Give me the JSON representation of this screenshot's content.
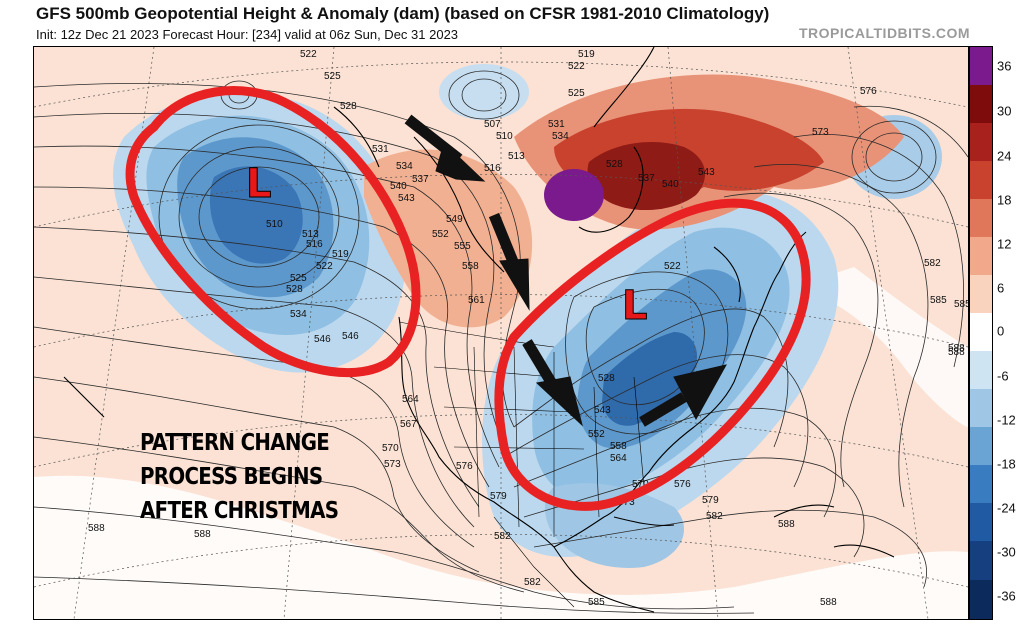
{
  "header": {
    "title": "GFS 500mb Geopotential Height & Anomaly (dam) (based on CFSR 1981-2010 Climatology)",
    "init_line": "Init: 12z Dec 21 2023   Forecast Hour: [234]   valid at 06z Sun, Dec 31 2023",
    "brand": "TROPICALTIDBITS.COM"
  },
  "annotation": {
    "lines": [
      "PATTERN CHANGE",
      "PROCESS BEGINS",
      "AFTER CHRISTMAS"
    ]
  },
  "low_markers": {
    "west": "L",
    "east": "L"
  },
  "contour_labels": {
    "c1": "522",
    "c2": "525",
    "c3": "528",
    "c4": "531",
    "c5": "534",
    "c6": "537",
    "c7": "540",
    "c8": "543",
    "c9": "546",
    "c10": "549",
    "c11": "552",
    "c12": "555",
    "c13": "558",
    "c14": "561",
    "c15": "510",
    "c16": "513",
    "c17": "516",
    "c18": "519",
    "c19": "522",
    "c20": "525",
    "c21": "528",
    "c22": "534",
    "c23": "546",
    "c24": "564",
    "c25": "567",
    "c26": "570",
    "c27": "573",
    "c28": "576",
    "c29": "579",
    "c30": "582",
    "c31": "585",
    "c32": "588",
    "c33": "588",
    "c34": "588",
    "c35": "588",
    "c36": "576",
    "c37": "573",
    "c38": "582",
    "c39": "585",
    "c40": "588",
    "c41": "519",
    "c42": "522",
    "c43": "525",
    "c44": "507",
    "c45": "510",
    "c46": "513",
    "c47": "516",
    "c48": "531",
    "c49": "534",
    "c50": "528",
    "c51": "537",
    "c52": "540",
    "c53": "543",
    "c54": "528",
    "c55": "543",
    "c56": "552",
    "c57": "558",
    "c58": "564",
    "c59": "570",
    "c60": "573",
    "c61": "576",
    "c62": "579",
    "c63": "582",
    "c64": "585",
    "c65": "588",
    "c66": "582",
    "c67": "522",
    "c68": "546"
  },
  "colorbar": {
    "ticks": [
      "36",
      "30",
      "24",
      "18",
      "12",
      "6",
      "0",
      "-6",
      "-12",
      "-18",
      "-24",
      "-30",
      "-36"
    ],
    "colors": [
      "#7a1a8c",
      "#7e0c0c",
      "#a8211c",
      "#c8422e",
      "#e0765a",
      "#f2a88a",
      "#fad3bf",
      "#ffffff",
      "#cfe4f2",
      "#9fc6e4",
      "#6aa4d4",
      "#3a7cc0",
      "#1f5aa3",
      "#153f7e",
      "#0c2a5c"
    ]
  },
  "map_colors": {
    "positive_anomaly": "#fad3bf",
    "strong_positive": "#c8422e",
    "negative_anomaly": "#9fc6e4",
    "strong_negative": "#3a7cc0",
    "circle_outline": "#e82222",
    "arrows": "#111111"
  }
}
